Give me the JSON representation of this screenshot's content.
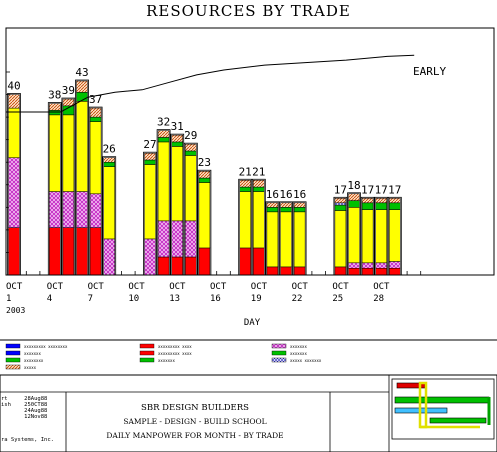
{
  "chart_data": {
    "type": "bar",
    "stacked": true,
    "title": "RESOURCES BY TRADE",
    "xlabel": "DAY",
    "ylabel": "",
    "ylim": [
      0,
      45
    ],
    "x_tick_labels": [
      "OCT\n1\n2003",
      "OCT\n4",
      "OCT\n7",
      "OCT\n10",
      "OCT\n13",
      "OCT\n16",
      "OCT\n19",
      "OCT\n22",
      "OCT\n25",
      "OCT\n28"
    ],
    "x_tick_days": [
      1,
      4,
      7,
      10,
      13,
      16,
      19,
      22,
      25,
      28
    ],
    "xlim": [
      1,
      31
    ],
    "series_colors": {
      "red": "#ff0000",
      "pink_hatch": "#e060e0",
      "yellow": "#ffff00",
      "green": "#00c000",
      "orange_hatch": "#d06020",
      "blue": "#0000ff"
    },
    "bars": [
      {
        "day": 1,
        "total": 40,
        "segments": {
          "red": 10.5,
          "pink_hatch": 15.5,
          "yellow": 11,
          "green": 0,
          "orange_hatch": 3
        }
      },
      {
        "day": 4,
        "total": 38,
        "segments": {
          "red": 10.5,
          "pink_hatch": 8,
          "yellow": 17,
          "green": 1,
          "orange_hatch": 1.5
        }
      },
      {
        "day": 5,
        "total": 39,
        "segments": {
          "red": 10.5,
          "pink_hatch": 8,
          "yellow": 17,
          "green": 2,
          "orange_hatch": 1.5
        }
      },
      {
        "day": 6,
        "total": 43,
        "segments": {
          "red": 10.5,
          "pink_hatch": 8,
          "yellow": 20,
          "green": 2,
          "orange_hatch": 2.5
        }
      },
      {
        "day": 7,
        "total": 37,
        "segments": {
          "red": 10.5,
          "pink_hatch": 7.5,
          "yellow": 16,
          "green": 1,
          "orange_hatch": 2
        }
      },
      {
        "day": 8,
        "total": 26,
        "segments": {
          "red": 0,
          "pink_hatch": 8,
          "yellow": 16,
          "green": 1,
          "orange_hatch": 1
        }
      },
      {
        "day": 11,
        "total": 27,
        "segments": {
          "red": 0,
          "pink_hatch": 8,
          "yellow": 16.5,
          "green": 1,
          "orange_hatch": 1.5
        }
      },
      {
        "day": 12,
        "total": 32,
        "segments": {
          "red": 4,
          "pink_hatch": 8,
          "yellow": 17.5,
          "green": 1,
          "orange_hatch": 1.5
        }
      },
      {
        "day": 13,
        "total": 31,
        "segments": {
          "red": 4,
          "pink_hatch": 8,
          "yellow": 16.5,
          "green": 1,
          "orange_hatch": 1.5
        }
      },
      {
        "day": 14,
        "total": 29,
        "segments": {
          "red": 4,
          "pink_hatch": 8,
          "yellow": 14.5,
          "green": 1,
          "orange_hatch": 1.5
        }
      },
      {
        "day": 15,
        "total": 23,
        "segments": {
          "red": 6,
          "pink_hatch": 0,
          "yellow": 14.5,
          "green": 1,
          "orange_hatch": 1.5
        }
      },
      {
        "day": 18,
        "total": 21,
        "segments": {
          "red": 6,
          "pink_hatch": 0,
          "yellow": 12.5,
          "green": 1,
          "orange_hatch": 1.5
        }
      },
      {
        "day": 19,
        "total": 21,
        "segments": {
          "red": 6,
          "pink_hatch": 0,
          "yellow": 12.5,
          "green": 1,
          "orange_hatch": 1.5
        }
      },
      {
        "day": 20,
        "total": 16,
        "segments": {
          "red": 1.8,
          "pink_hatch": 0,
          "yellow": 12.2,
          "green": 1,
          "orange_hatch": 1
        }
      },
      {
        "day": 21,
        "total": 16,
        "segments": {
          "red": 1.8,
          "pink_hatch": 0,
          "yellow": 12.2,
          "green": 1,
          "orange_hatch": 1
        }
      },
      {
        "day": 22,
        "total": 16,
        "segments": {
          "red": 1.8,
          "pink_hatch": 0,
          "yellow": 12.2,
          "green": 1,
          "orange_hatch": 1
        }
      },
      {
        "day": 25,
        "total": 17,
        "segments": {
          "red": 1.8,
          "pink_hatch": 0,
          "yellow": 12.5,
          "green": 1.2,
          "orange_hatch": 1,
          "blue": 0.5
        }
      },
      {
        "day": 26,
        "total": 18,
        "segments": {
          "red": 1.5,
          "pink_hatch": 1.2,
          "yellow": 12.3,
          "green": 1.5,
          "orange_hatch": 1.5
        }
      },
      {
        "day": 27,
        "total": 17,
        "segments": {
          "red": 1.5,
          "pink_hatch": 1.2,
          "yellow": 11.8,
          "green": 1.5,
          "orange_hatch": 1
        }
      },
      {
        "day": 28,
        "total": 17,
        "segments": {
          "red": 1.5,
          "pink_hatch": 1.2,
          "yellow": 11.8,
          "green": 1.5,
          "orange_hatch": 1
        }
      },
      {
        "day": 29,
        "total": 17,
        "segments": {
          "red": 1.5,
          "pink_hatch": 1.5,
          "yellow": 11.5,
          "green": 1.5,
          "orange_hatch": 1
        }
      }
    ],
    "cumulative_curve": {
      "label": "EARLY",
      "description": "cumulative resource curve, rising across the period",
      "fraction_of_height": [
        [
          0.5,
          0.66
        ],
        [
          4.5,
          0.66
        ],
        [
          6.5,
          0.72
        ],
        [
          8.5,
          0.74
        ],
        [
          10.5,
          0.75
        ],
        [
          12.5,
          0.78
        ],
        [
          14.5,
          0.81
        ],
        [
          16.5,
          0.83
        ],
        [
          19.5,
          0.85
        ],
        [
          22.5,
          0.86
        ],
        [
          25.5,
          0.87
        ],
        [
          28.5,
          0.885
        ],
        [
          30.5,
          0.89
        ]
      ]
    }
  },
  "legend": {
    "items": [
      {
        "color": "#0000ff",
        "pattern": "solid",
        "label": "xxxxxxxxx xxxxxxxx"
      },
      {
        "color": "#ff0000",
        "pattern": "solid",
        "label": "xxxxxxxxx xxxx"
      },
      {
        "color": "#e060e0",
        "pattern": "hatch",
        "label": "xxxxxxx"
      },
      {
        "color": "#0000ff",
        "pattern": "solid",
        "label": "xxxxxxx"
      },
      {
        "color": "#ff0000",
        "pattern": "solid",
        "label": "xxxxxxxxx xxxx"
      },
      {
        "color": "#00c000",
        "pattern": "solid",
        "label": "xxxxxxx"
      },
      {
        "color": "#00c000",
        "pattern": "solid",
        "label": "xxxxxxxx"
      },
      {
        "color": "#00c000",
        "pattern": "solid",
        "label": "xxxxxxx"
      },
      {
        "color": "#d0d0ff",
        "pattern": "hatch",
        "label": "xxxxx xxxxxxx"
      },
      {
        "color": "#d06020",
        "pattern": "hatch",
        "label": "xxxxx"
      }
    ]
  },
  "title_block": {
    "company": "SBR DESIGN BUILDERS",
    "project": "SAMPLE - DESIGN - BUILD SCHOOL",
    "description": "DAILY MANPOWER FOR MONTH - BY TRADE",
    "left_lines": [
      "rt     28Aug88",
      "ish    250CT88",
      "       24Aug88",
      "       12Nov88"
    ],
    "footer": "ra Systems, Inc."
  }
}
